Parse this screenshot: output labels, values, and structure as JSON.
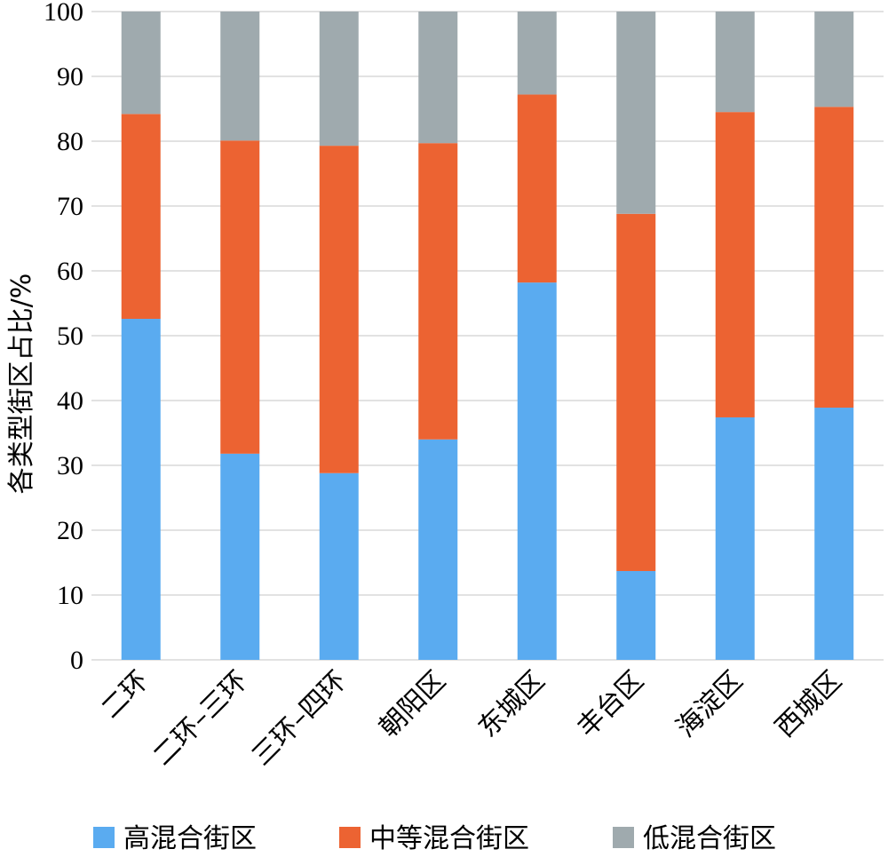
{
  "chart_data": {
    "type": "bar",
    "stacked": true,
    "categories": [
      "二环",
      "二环–三环",
      "三环–四环",
      "朝阳区",
      "东城区",
      "丰台区",
      "海淀区",
      "西城区"
    ],
    "series": [
      {
        "name": "高混合街区",
        "color": "#5aabf0",
        "values": [
          52.6,
          31.8,
          28.8,
          34.0,
          58.2,
          13.7,
          37.4,
          38.9
        ]
      },
      {
        "name": "中等混合街区",
        "color": "#ec6332",
        "values": [
          31.6,
          48.3,
          50.5,
          45.7,
          29.0,
          55.1,
          47.1,
          46.4
        ]
      },
      {
        "name": "低混合街区",
        "color": "#9faaae",
        "values": [
          15.8,
          19.9,
          20.7,
          20.3,
          12.8,
          31.2,
          15.5,
          14.7
        ]
      }
    ],
    "ylabel": "各类型街区占比/%",
    "xlabel": "",
    "ylim": [
      0,
      100
    ],
    "yticks": [
      0,
      10,
      20,
      30,
      40,
      50,
      60,
      70,
      80,
      90,
      100
    ],
    "grid": true,
    "legend": "bottom"
  }
}
